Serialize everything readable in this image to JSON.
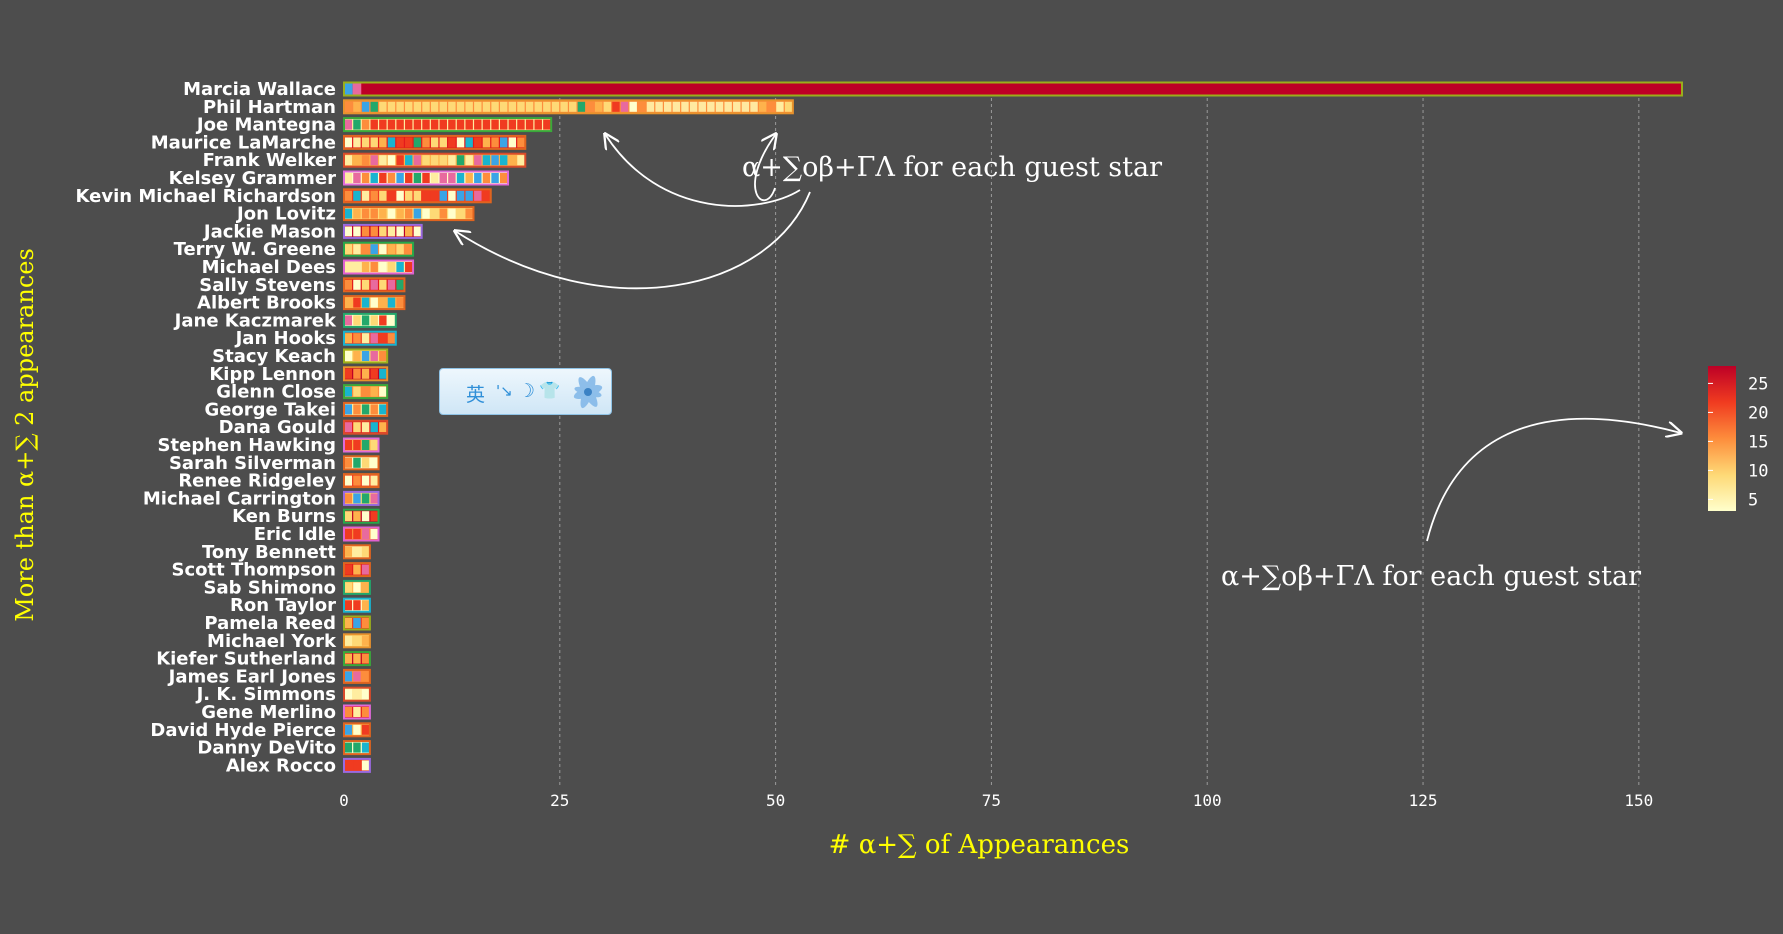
{
  "chart_data": {
    "type": "bar",
    "orientation": "horizontal",
    "stacked": true,
    "xlabel": "# α+∑ of Appearances",
    "ylabel": "More than α+∑ 2 appearances",
    "xlim": [
      0,
      155
    ],
    "x_ticks": [
      0,
      25,
      50,
      75,
      100,
      125,
      150
    ],
    "grid": "vertical dashed",
    "legend": {
      "type": "colorbar",
      "placement": "right",
      "ticks": [
        5,
        10,
        15,
        20,
        25
      ],
      "range": [
        3,
        28
      ],
      "colors": [
        "#ffffcc",
        "#fed976",
        "#fd8d3c",
        "#f03b20",
        "#bd0026"
      ]
    },
    "categories": [
      "Marcia Wallace",
      "Phil Hartman",
      "Joe Mantegna",
      "Maurice LaMarche",
      "Frank Welker",
      "Kelsey Grammer",
      "Kevin Michael Richardson",
      "Jon Lovitz",
      "Jackie Mason",
      "Terry W. Greene",
      "Michael Dees",
      "Sally Stevens",
      "Albert Brooks",
      "Jane Kaczmarek",
      "Jan Hooks",
      "Stacy Keach",
      "Kipp Lennon",
      "Glenn Close",
      "George Takei",
      "Dana Gould",
      "Stephen Hawking",
      "Sarah Silverman",
      "Renee Ridgeley",
      "Michael Carrington",
      "Ken Burns",
      "Eric Idle",
      "Tony Bennett",
      "Scott Thompson",
      "Sab Shimono",
      "Ron Taylor",
      "Pamela Reed",
      "Michael York",
      "Kiefer Sutherland",
      "James Earl Jones",
      "J. K. Simmons",
      "Gene Merlino",
      "David Hyde Pierce",
      "Danny DeVito",
      "Alex Rocco"
    ],
    "values": [
      155,
      52,
      24,
      21,
      21,
      19,
      17,
      15,
      9,
      8,
      8,
      7,
      7,
      6,
      6,
      5,
      5,
      5,
      5,
      5,
      4,
      4,
      4,
      4,
      4,
      4,
      3,
      3,
      3,
      3,
      3,
      3,
      3,
      3,
      3,
      3,
      3,
      3,
      3
    ],
    "annotations": [
      "α+∑oβ+ΓΛ for each guest star",
      "α+∑oβ+ΓΛ for each guest star"
    ]
  },
  "ime_toolbar": {
    "lang": "英",
    "punct": "'↘",
    "moon": "☽",
    "shirt": "👕"
  }
}
